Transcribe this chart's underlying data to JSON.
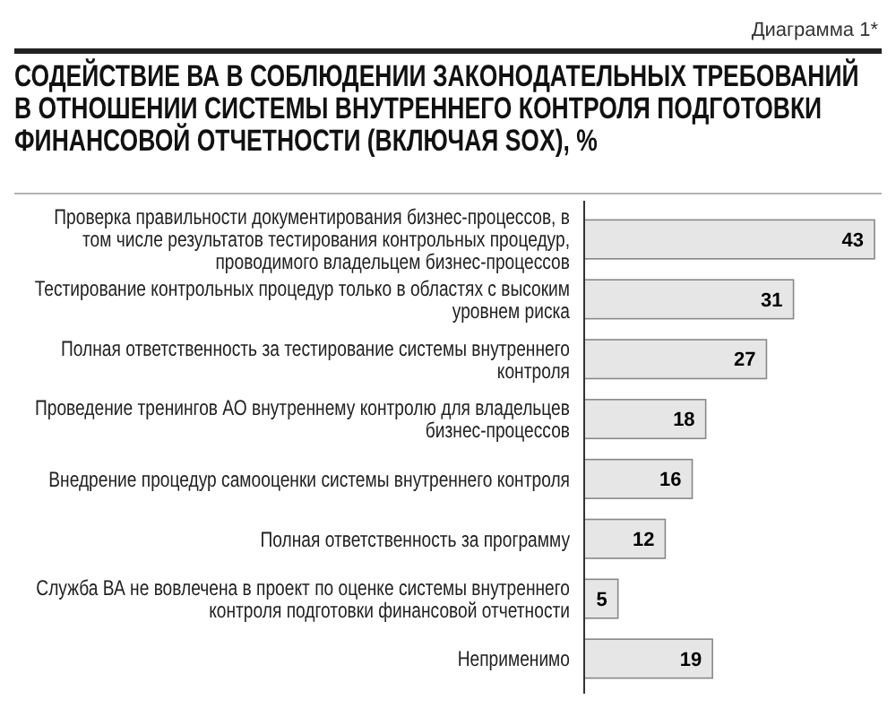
{
  "chart_data": {
    "type": "bar",
    "orientation": "horizontal",
    "title": "СОДЕЙСТВИЕ ВА В СОБЛЮДЕНИИ ЗАКОНОДАТЕЛЬНЫХ ТРЕБОВАНИЙ В ОТНОШЕНИИ СИСТЕМЫ ВНУТРЕННЕГО КОНТРОЛЯ ПОДГОТОВКИ ФИНАНСОВОЙ ОТЧЕТНОСТИ (ВКЛЮЧАЯ SOX), %",
    "annotations": [
      "Диаграмма 1*"
    ],
    "categories": [
      "Проверка правильности документирования бизнес-процессов, в том числе результатов тестирования контрольных процедур, проводимого владельцем бизнес-процессов",
      "Тестирование контрольных процедур только в областях с высоким уровнем риска",
      "Полная ответственность за тестирование системы внутреннего контроля",
      "Проведение тренингов АО внутреннему контролю для владельцев бизнес-процессов",
      "Внедрение процедур самооценки системы внутреннего контроля",
      "Полная ответственность за программу",
      "Служба ВА не вовлечена в проект по оценке системы внутреннего контроля подготовки финансовой отчетности",
      "Неприменимо"
    ],
    "values": [
      43,
      31,
      27,
      18,
      16,
      12,
      5,
      19
    ],
    "color": "#e6e6e6",
    "data_labels": true
  }
}
